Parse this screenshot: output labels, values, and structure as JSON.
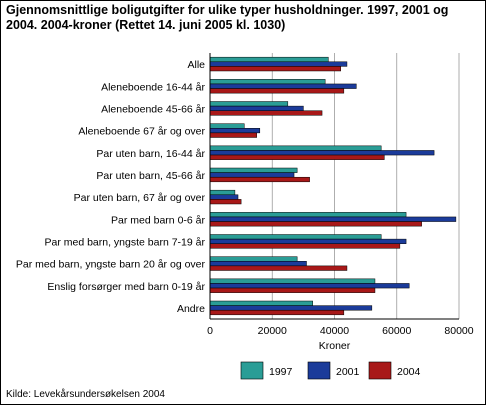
{
  "title": "Gjennomsnittlige boligutgifter for ulike typer husholdninger. 1997, 2001 og 2004. 2004-kroner (Rettet 14. juni 2005 kl. 1030)",
  "source": "Kilde: Levekårsundersøkelsen 2004",
  "chart_data": {
    "type": "bar",
    "orientation": "horizontal",
    "categories": [
      "Alle",
      "Aleneboende 16-44 år",
      "Aleneboende 45-66 år",
      "Aleneboende 67 år og over",
      "Par uten barn, 16-44 år",
      "Par uten barn, 45-66 år",
      "Par uten barn, 67 år og over",
      "Par med barn 0-6 år",
      "Par med barn, yngste barn 7-19 år",
      "Par med barn, yngste barn 20 år og over",
      "Enslig forsørger med barn 0-19 år",
      "Andre"
    ],
    "series": [
      {
        "name": "1997",
        "color": "#2a9d96",
        "values": [
          38000,
          37000,
          25000,
          11000,
          55000,
          28000,
          8000,
          63000,
          55000,
          28000,
          53000,
          33000
        ]
      },
      {
        "name": "2001",
        "color": "#1b3b9a",
        "values": [
          44000,
          47000,
          30000,
          16000,
          72000,
          27000,
          9000,
          79000,
          63000,
          31000,
          64000,
          52000
        ]
      },
      {
        "name": "2004",
        "color": "#a81818",
        "values": [
          42000,
          43000,
          36000,
          15000,
          56000,
          32000,
          10000,
          68000,
          61000,
          44000,
          53000,
          43000
        ]
      }
    ],
    "xlabel": "Kroner",
    "ylabel": "",
    "xlim": [
      0,
      80000
    ],
    "xticks": [
      0,
      20000,
      40000,
      60000,
      80000
    ],
    "xtick_labels": [
      "0",
      "20000",
      "40000",
      "60000",
      "80000"
    ],
    "grid": "vertical",
    "legend_position": "bottom"
  }
}
